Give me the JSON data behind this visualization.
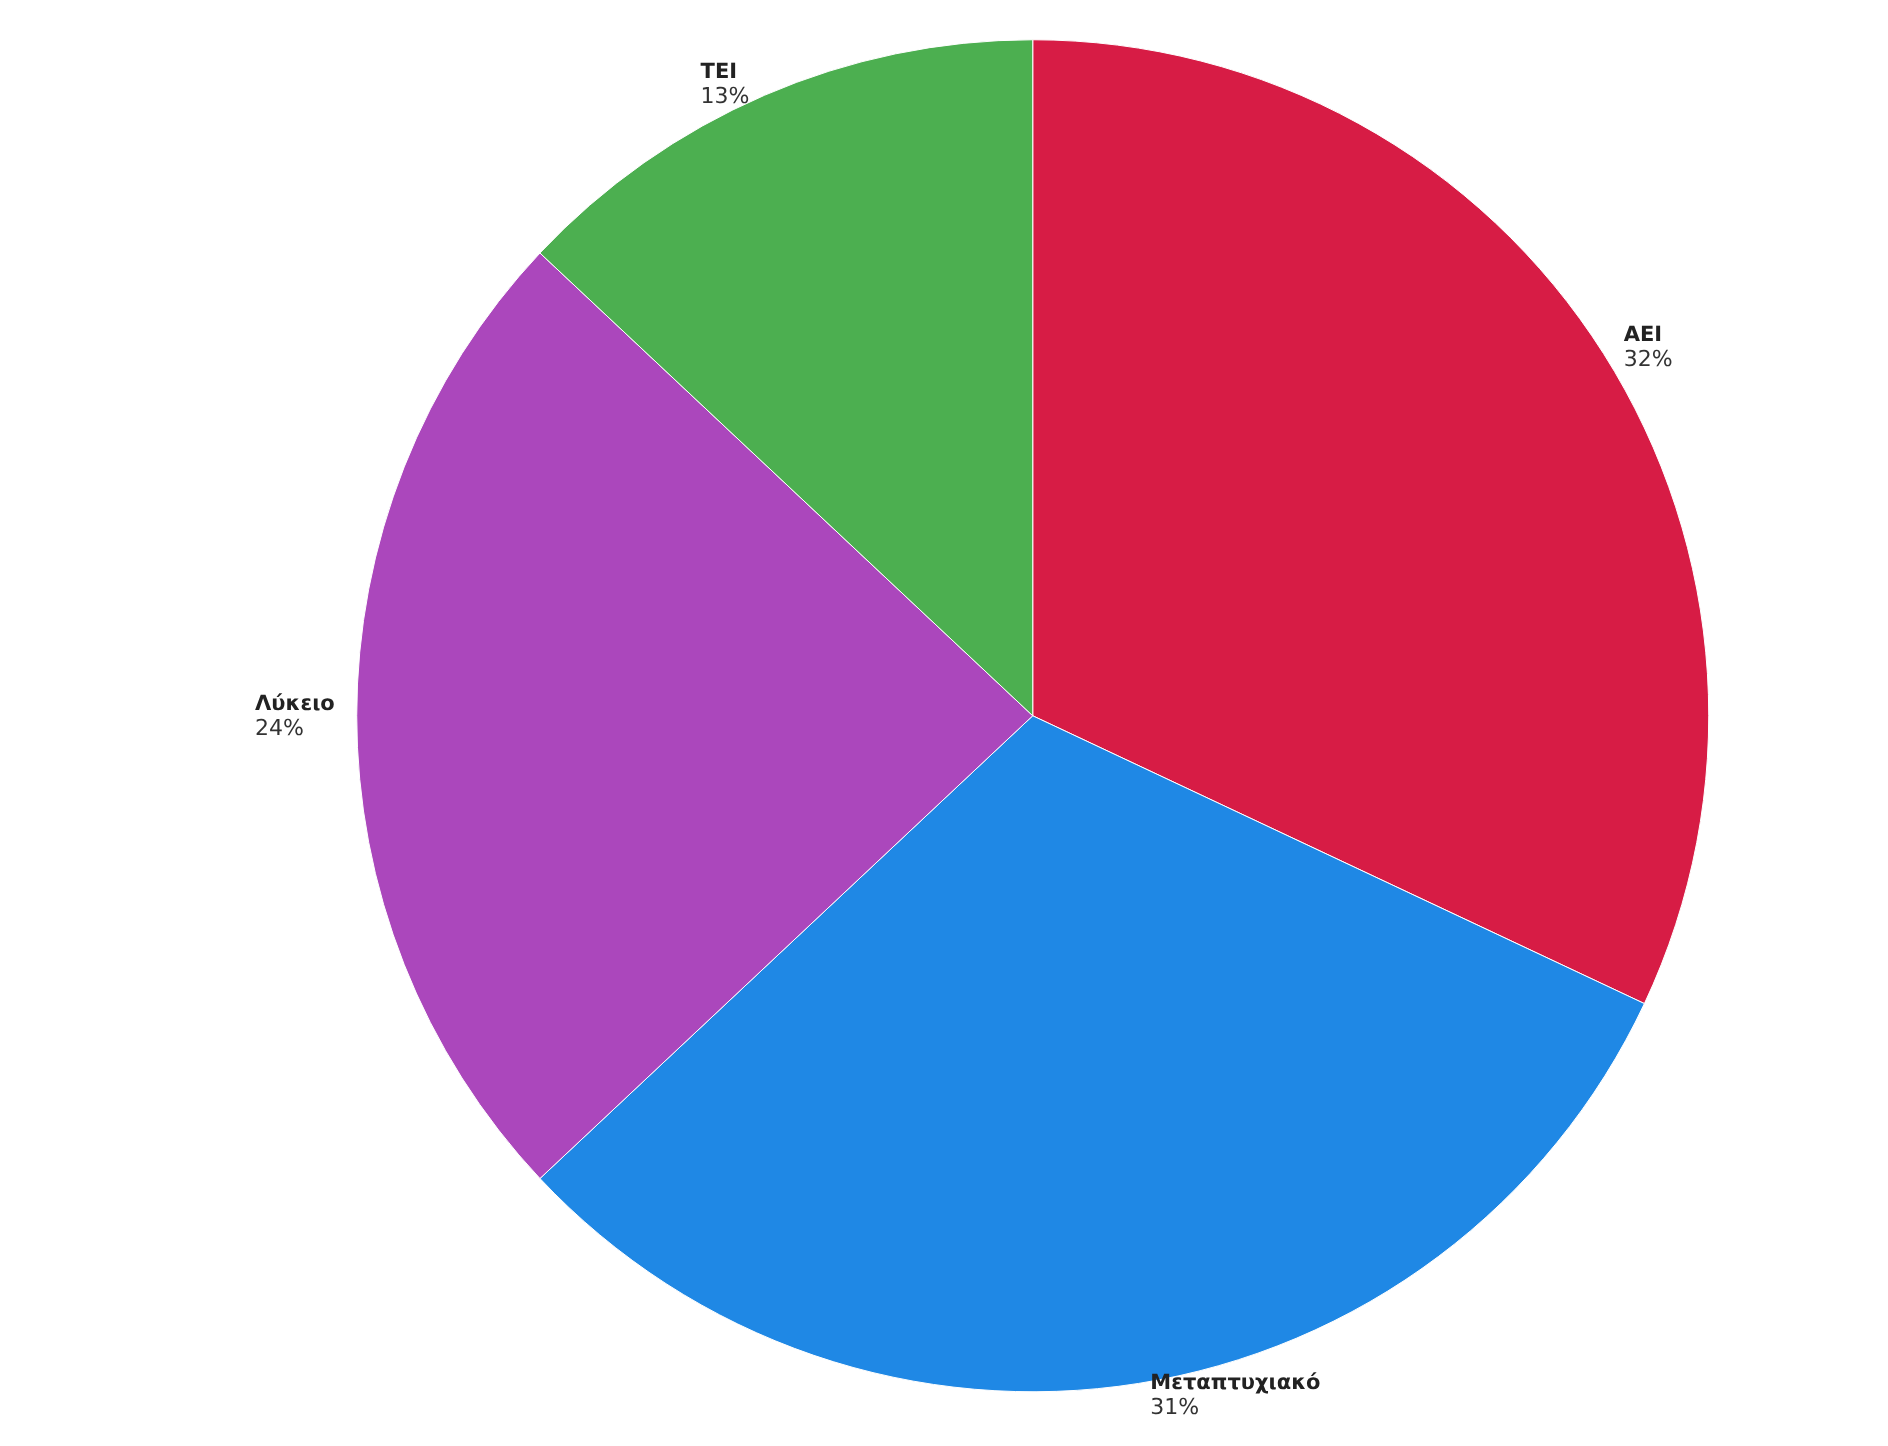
{
  "chart_data": {
    "type": "pie",
    "categories": [
      "ΑΕΙ",
      "Μεταπτυχιακό",
      "Λύκειο",
      "ΤΕΙ"
    ],
    "values": [
      32,
      31,
      24,
      13
    ],
    "colors": [
      "#d71c45",
      "#1f88e5",
      "#ab47bc",
      "#4caf50"
    ],
    "value_labels": [
      "32%",
      "31%",
      "24%",
      "13%"
    ]
  }
}
